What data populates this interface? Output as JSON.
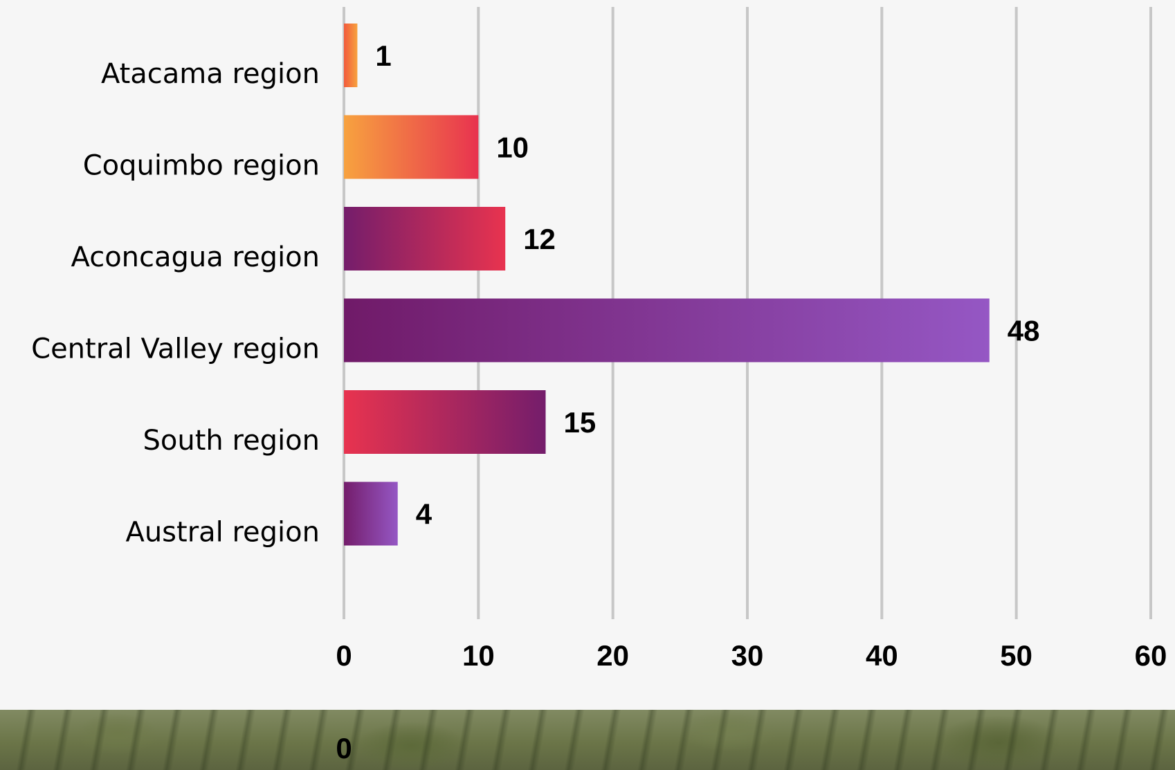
{
  "chart_data": {
    "type": "bar",
    "orientation": "horizontal",
    "categories": [
      "Atacama region",
      "Coquimbo region",
      "Aconcagua region",
      "Central Valley region",
      "South region",
      "Austral region"
    ],
    "values": [
      1,
      10,
      12,
      48,
      15,
      4
    ],
    "value_labels": [
      "1",
      "10",
      "12",
      "48",
      "15",
      "4"
    ],
    "xlim": [
      0,
      60
    ],
    "x_ticks": [
      0,
      10,
      20,
      30,
      40,
      50,
      60
    ],
    "x_tick_labels": [
      "0",
      "10",
      "20",
      "30",
      "40",
      "50",
      "60"
    ],
    "grid": "vertical",
    "legend": "none",
    "bar_gradients": [
      [
        "#f25a3c",
        "#f7a23f"
      ],
      [
        "#f7a23f",
        "#e8334f"
      ],
      [
        "#741d6b",
        "#e8334f"
      ],
      [
        "#701a68",
        "#9557c4"
      ],
      [
        "#e8334f",
        "#741d6b"
      ],
      [
        "#741d6b",
        "#9557c4"
      ]
    ],
    "colors": {
      "background": "#f6f6f6",
      "grid": "#c7c7c7",
      "text": "#000000"
    }
  },
  "footer": {
    "tick_label": "0"
  }
}
